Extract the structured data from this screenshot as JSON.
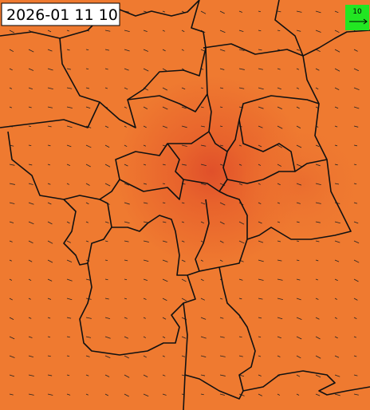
{
  "timestamp": "2026-01 11 10",
  "legend": {
    "label": "10"
  }
}
